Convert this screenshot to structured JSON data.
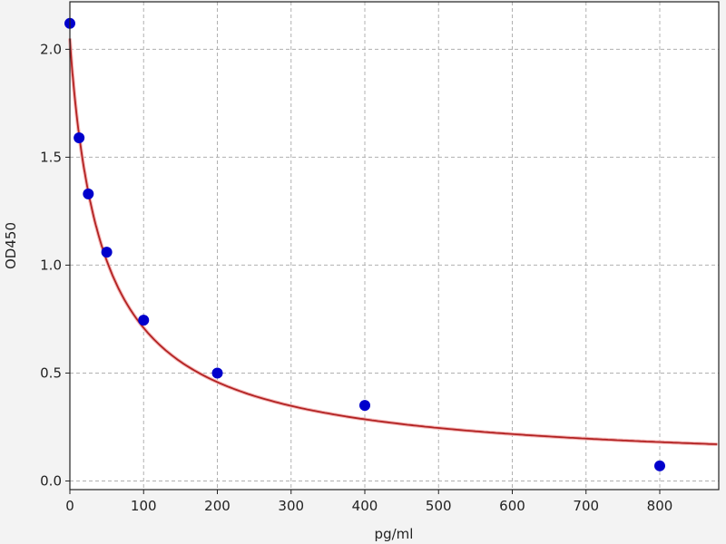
{
  "chart_data": {
    "type": "scatter",
    "title": "",
    "xlabel": "pg/ml",
    "ylabel": "OD450",
    "xlim": [
      0,
      880
    ],
    "ylim": [
      -0.04,
      2.22
    ],
    "xticks": [
      0,
      100,
      200,
      300,
      400,
      500,
      600,
      700,
      800
    ],
    "yticks": [
      0.0,
      0.5,
      1.0,
      1.5,
      2.0
    ],
    "xtick_labels": [
      "0",
      "100",
      "200",
      "300",
      "400",
      "500",
      "600",
      "700",
      "800"
    ],
    "ytick_labels": [
      "0.0",
      "0.5",
      "1.0",
      "1.5",
      "2.0"
    ],
    "grid": true,
    "series": [
      {
        "type": "scatter",
        "x": [
          0,
          12.5,
          25,
          50,
          100,
          200,
          400,
          800
        ],
        "y": [
          2.12,
          1.59,
          1.33,
          1.06,
          0.745,
          0.5,
          0.35,
          0.07
        ],
        "color": "#0000cc"
      },
      {
        "type": "line",
        "fit": "4-parameter logistic",
        "color": "#b22222"
      }
    ]
  }
}
